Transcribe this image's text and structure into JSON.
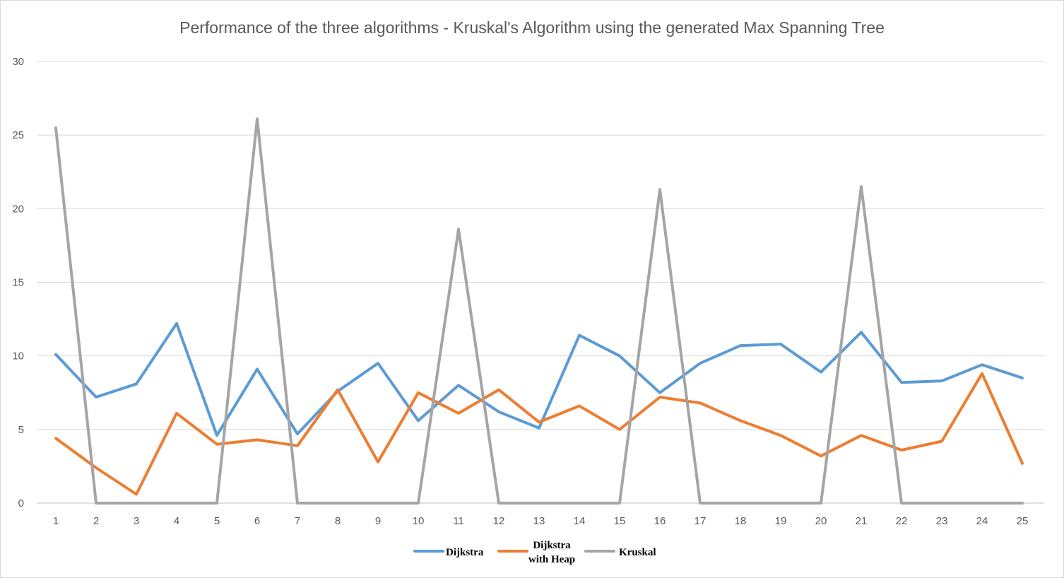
{
  "chart_data": {
    "type": "line",
    "title": "Performance of the three algorithms - Kruskal's Algorithm using the generated Max Spanning Tree",
    "xlabel": "",
    "ylabel": "",
    "categories": [
      "1",
      "2",
      "3",
      "4",
      "5",
      "6",
      "7",
      "8",
      "9",
      "10",
      "11",
      "12",
      "13",
      "14",
      "15",
      "16",
      "17",
      "18",
      "19",
      "20",
      "21",
      "22",
      "23",
      "24",
      "25"
    ],
    "ylim": [
      0,
      30
    ],
    "yticks": [
      0,
      5,
      10,
      15,
      20,
      25,
      30
    ],
    "grid": true,
    "legend_position": "bottom",
    "series": [
      {
        "name": "Dijkstra",
        "color": "#5b9bd5",
        "values": [
          10.1,
          7.2,
          8.1,
          12.2,
          4.6,
          9.1,
          4.7,
          7.6,
          9.5,
          5.6,
          8.0,
          6.2,
          5.1,
          11.4,
          10.0,
          7.5,
          9.5,
          10.7,
          10.8,
          8.9,
          11.6,
          8.2,
          8.3,
          9.4,
          8.5
        ]
      },
      {
        "name": "Dijkstra with Heap",
        "name_lines": [
          "Dijkstra",
          "with Heap"
        ],
        "color": "#ed7d31",
        "values": [
          4.4,
          2.4,
          0.6,
          6.1,
          4.0,
          4.3,
          3.9,
          7.7,
          2.8,
          7.5,
          6.1,
          7.7,
          5.5,
          6.6,
          5.0,
          7.2,
          6.8,
          5.6,
          4.6,
          3.2,
          4.6,
          3.6,
          4.2,
          8.8,
          2.7
        ]
      },
      {
        "name": "Kruskal",
        "color": "#a5a5a5",
        "values": [
          25.5,
          0,
          0,
          0,
          0,
          26.1,
          0,
          0,
          0,
          0,
          18.6,
          0,
          0,
          0,
          0,
          21.3,
          0,
          0,
          0,
          0,
          21.5,
          0,
          0,
          0,
          0
        ]
      }
    ]
  }
}
